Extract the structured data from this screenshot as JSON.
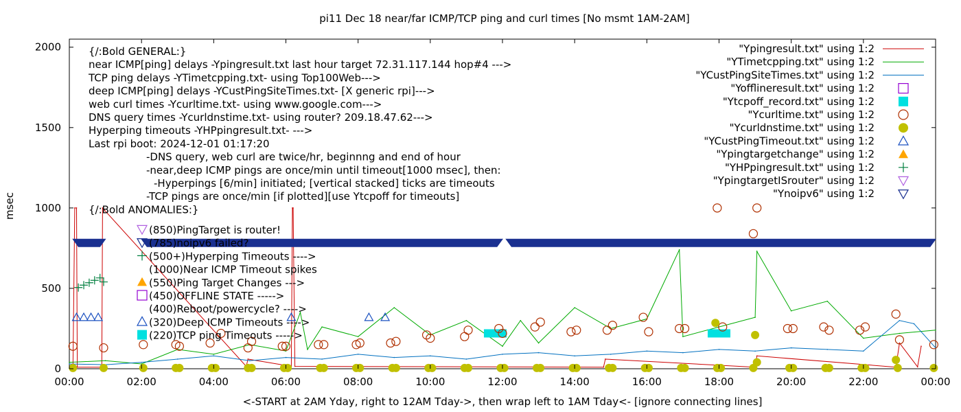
{
  "chart_data": {
    "type": "scatter",
    "title": "pi11 Dec 18  near/far ICMP/TCP ping and curl times [No msmt 1AM-2AM]",
    "xlabel": "<-START at 2AM Yday, right to 12AM Tday->, then wrap left to 1AM Tday<- [ignore connecting lines]",
    "ylabel": "msec",
    "xlim": [
      0,
      24
    ],
    "ylim": [
      0,
      2050
    ],
    "x_ticks": [
      "00:00",
      "02:00",
      "04:00",
      "06:00",
      "08:00",
      "10:00",
      "12:00",
      "14:00",
      "16:00",
      "18:00",
      "20:00",
      "22:00",
      "00:00"
    ],
    "y_ticks": [
      "0",
      "500",
      "1000",
      "1500",
      "2000"
    ],
    "legend_position": "top-right",
    "legend": [
      {
        "label": "\"Ypingresult.txt\" using 1:2",
        "style": "line",
        "color": "#cc0000"
      },
      {
        "label": "\"YTimetcpping.txt\" using 1:2",
        "style": "line",
        "color": "#00aa00"
      },
      {
        "label": "\"YCustPingSiteTimes.txt\" using 1:2",
        "style": "line",
        "color": "#0070c0"
      },
      {
        "label": "\"Yofflineresult.txt\" using 1:2",
        "style": "open-square",
        "color": "#9400d3"
      },
      {
        "label": "\"Ytcpoff_record.txt\" using 1:2",
        "style": "filled-square",
        "color": "#00e0e0"
      },
      {
        "label": "\"Ycurltime.txt\" using 1:2",
        "style": "open-circle",
        "color": "#b03000"
      },
      {
        "label": "\"Ycurldnstime.txt\" using 1:2",
        "style": "filled-circle",
        "color": "#c0c000"
      },
      {
        "label": "\"YCustPingTimeout.txt\" using 1:2",
        "style": "open-triangle",
        "color": "#1a50c0"
      },
      {
        "label": "\"Ypingtargetchange\" using 1:2",
        "style": "filled-triangle",
        "color": "#ffa500"
      },
      {
        "label": "\"YHPpingresult.txt\" using 1:2",
        "style": "plus",
        "color": "#007f3f"
      },
      {
        "label": "\"YpingtargetISrouter\" using 1:2",
        "style": "open-down-triangle",
        "color": "#b060e0"
      },
      {
        "label": "\"Ynoipv6\" using 1:2",
        "style": "open-down-triangle",
        "color": "#1a3090"
      }
    ],
    "notes": [
      "{/:Bold GENERAL:}",
      "near ICMP[ping] delays -Ypingresult.txt last hour target 72.31.117.144 hop#4 --->",
      "TCP ping delays -YTimetcpping.txt- using Top100Web--->",
      "deep ICMP[ping] delays -YCustPingSiteTimes.txt- [X generic rpi]--->",
      "web curl times -Ycurltime.txt- using www.google.com--->",
      "DNS query times -Ycurldnstime.txt- using router? 209.18.47.62--->",
      "Hyperping timeouts -YHPpingresult.txt- --->",
      "Last rpi boot: 2024-12-01 01:17:20",
      "-DNS query, web curl are twice/hr, beginnng and end of hour",
      "-near,deep ICMP pings are once/min until timeout[1000 msec], then:",
      "-Hyperpings [6/min] initiated; [vertical stacked] ticks are timeouts",
      "-TCP pings are once/min [if plotted][use Ytcpoff for timeouts]",
      "{/:Bold ANOMALIES:}"
    ],
    "anomaly_keys": [
      {
        "label": "(850)PingTarget is router!",
        "symbol": "open-down-triangle",
        "color": "#b060e0"
      },
      {
        "label": "(785)noipv6 failed?",
        "symbol": "open-down-triangle",
        "color": "#1a3090"
      },
      {
        "label": "(500+)Hyperping Timeouts ---->",
        "symbol": "plus",
        "color": "#007f3f"
      },
      {
        "label": "(1000)Near ICMP Timeout spikes",
        "symbol": "none",
        "color": "#cc0000"
      },
      {
        "label": "(550)Ping Target Changes --->",
        "symbol": "filled-triangle",
        "color": "#ffa500"
      },
      {
        "label": "(450)OFFLINE STATE ----->",
        "symbol": "open-square",
        "color": "#9400d3"
      },
      {
        "label": "(400)Reboot/powercycle? ---->",
        "symbol": "none",
        "color": "#000000"
      },
      {
        "label": "(320)Deep ICMP Timeouts ---->",
        "symbol": "open-triangle",
        "color": "#1a50c0"
      },
      {
        "label": "(220)TCP ping Timeouts ----->",
        "symbol": "filled-square",
        "color": "#00e0e0"
      }
    ],
    "series": [
      {
        "name": "\"Ypingresult.txt\" using 1:2",
        "type": "line",
        "color": "#cc0000",
        "x": [
          0.1,
          0.15,
          0.2,
          0.22,
          0.9,
          0.92,
          4.9,
          4.95,
          6.15,
          6.18,
          6.2,
          6.25,
          14.8,
          14.85,
          19.0,
          19.05,
          22.9,
          23.0,
          23.5,
          23.6
        ],
        "y": [
          10,
          1000,
          1000,
          10,
          10,
          1000,
          15,
          60,
          15,
          1000,
          1000,
          15,
          10,
          60,
          10,
          80,
          10,
          160,
          12,
          140
        ]
      },
      {
        "name": "\"YTimetcpping.txt\" using 1:2",
        "type": "line",
        "color": "#00aa00",
        "x": [
          0.0,
          1.0,
          2.0,
          3.0,
          4.0,
          5.0,
          6.0,
          6.4,
          6.6,
          7.0,
          8.0,
          9.0,
          10.0,
          11.0,
          12.0,
          12.5,
          13.0,
          14.0,
          15.0,
          16.0,
          16.9,
          17.0,
          18.0,
          19.0,
          19.05,
          20.0,
          21.0,
          22.0,
          23.0,
          24.0
        ],
        "y": [
          40,
          50,
          30,
          120,
          90,
          150,
          110,
          350,
          120,
          260,
          200,
          380,
          210,
          300,
          140,
          300,
          160,
          380,
          250,
          310,
          740,
          200,
          260,
          320,
          730,
          360,
          420,
          190,
          220,
          240
        ]
      },
      {
        "name": "\"YCustPingSiteTimes.txt\" using 1:2",
        "type": "line",
        "color": "#0070c0",
        "x": [
          0.0,
          1.0,
          2.0,
          3.0,
          4.0,
          5.0,
          6.0,
          7.0,
          8.0,
          9.0,
          10.0,
          11.0,
          12.0,
          13.0,
          14.0,
          15.0,
          16.0,
          17.0,
          18.0,
          19.0,
          20.0,
          21.0,
          22.0,
          23.0,
          23.4,
          24.0
        ],
        "y": [
          30,
          25,
          40,
          60,
          80,
          50,
          70,
          60,
          90,
          70,
          80,
          60,
          90,
          100,
          80,
          90,
          110,
          100,
          120,
          110,
          130,
          120,
          110,
          300,
          280,
          130
        ]
      },
      {
        "name": "\"Ytcpoff_record.txt\" using 1:2",
        "type": "filled-square",
        "color": "#00e0e0",
        "x": [
          11.6,
          11.8,
          12.0,
          17.8,
          18.0,
          18.2
        ],
        "y": [
          220,
          220,
          220,
          220,
          220,
          220
        ]
      },
      {
        "name": "\"Ycurltime.txt\" using 1:2",
        "type": "open-circle",
        "color": "#b03000",
        "x": [
          0.1,
          0.95,
          2.05,
          2.95,
          3.05,
          3.9,
          4.2,
          4.95,
          5.05,
          5.9,
          6.0,
          6.9,
          7.05,
          7.95,
          8.05,
          8.9,
          9.05,
          9.9,
          10.0,
          10.95,
          11.05,
          11.9,
          12.0,
          12.9,
          13.05,
          13.9,
          14.05,
          14.9,
          15.05,
          15.9,
          16.05,
          16.9,
          17.05,
          17.95,
          18.1,
          18.95,
          19.05,
          19.9,
          20.05,
          20.9,
          21.05,
          21.9,
          22.05,
          22.9,
          23.0,
          23.95
        ],
        "y": [
          140,
          130,
          150,
          150,
          140,
          160,
          220,
          130,
          170,
          140,
          140,
          150,
          150,
          150,
          160,
          160,
          170,
          210,
          190,
          200,
          240,
          250,
          220,
          260,
          290,
          230,
          240,
          240,
          270,
          320,
          230,
          250,
          250,
          1000,
          260,
          840,
          1000,
          250,
          250,
          260,
          240,
          240,
          260,
          340,
          180,
          150
        ]
      },
      {
        "name": "\"Ycurldnstime.txt\" using 1:2",
        "type": "filled-circle",
        "color": "#c0c000",
        "x": [
          0.1,
          0.95,
          2.05,
          2.95,
          3.05,
          3.95,
          4.05,
          4.95,
          5.05,
          5.95,
          6.05,
          6.95,
          7.05,
          7.95,
          8.05,
          8.95,
          9.05,
          9.95,
          10.05,
          10.95,
          11.05,
          11.95,
          12.05,
          12.95,
          13.05,
          13.95,
          14.05,
          14.95,
          15.05,
          15.95,
          16.05,
          16.95,
          17.05,
          17.9,
          17.95,
          18.05,
          18.95,
          19.0,
          19.05,
          19.95,
          20.05,
          20.95,
          21.05,
          21.95,
          22.05,
          22.9,
          22.95,
          23.95
        ],
        "y": [
          5,
          5,
          5,
          5,
          5,
          5,
          5,
          5,
          5,
          5,
          5,
          5,
          5,
          5,
          5,
          5,
          5,
          5,
          5,
          5,
          5,
          5,
          5,
          5,
          5,
          5,
          5,
          5,
          5,
          5,
          5,
          5,
          5,
          285,
          5,
          5,
          5,
          210,
          40,
          5,
          5,
          5,
          5,
          5,
          5,
          55,
          5,
          5
        ]
      },
      {
        "name": "\"YCustPingTimeout.txt\" using 1:2",
        "type": "open-triangle",
        "color": "#1a50c0",
        "x": [
          0.2,
          0.4,
          0.6,
          0.8,
          6.15,
          8.3,
          8.75
        ],
        "y": [
          320,
          320,
          320,
          320,
          320,
          320,
          320
        ]
      },
      {
        "name": "\"YHPpingresult.txt\" using 1:2",
        "type": "plus",
        "color": "#007f3f",
        "x": [
          0.25,
          0.4,
          0.55,
          0.7,
          0.85,
          0.95
        ],
        "y": [
          505,
          520,
          535,
          550,
          565,
          540
        ]
      },
      {
        "name": "\"Ynoipv6\" using 1:2",
        "type": "open-down-triangle",
        "color": "#1a3090",
        "x": [
          0.1,
          1.0,
          2.0,
          12.0,
          12.1,
          24.0
        ],
        "y": [
          785,
          785,
          785,
          785,
          785,
          785
        ]
      }
    ]
  }
}
